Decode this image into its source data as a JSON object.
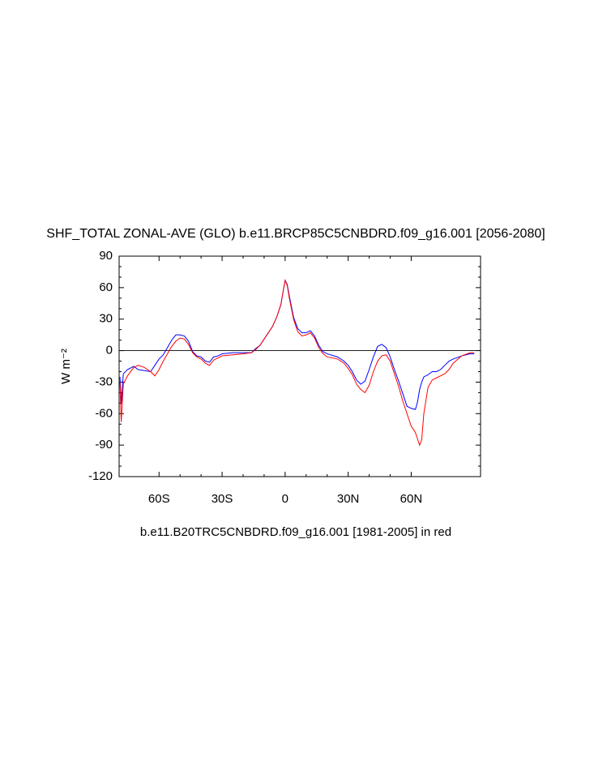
{
  "chart_data": {
    "type": "line",
    "title": "SHF_TOTAL ZONAL-AVE (GLO) b.e11.BRCP85C5CNBDRD.f09_g16.001 [2056-2080]",
    "x_label": "b.e11.B20TRC5CNBDRD.f09_g16.001 [1981-2005] in red",
    "y_label": "W m⁻²",
    "x": [
      -78.6,
      -78,
      -77,
      -75,
      -72,
      -70,
      -67,
      -64,
      -62,
      -60,
      -58,
      -56,
      -54,
      -52,
      -50,
      -48,
      -46,
      -44,
      -42,
      -40,
      -38,
      -36,
      -34,
      -32,
      -30,
      -25,
      -20,
      -16,
      -14,
      -12,
      -10,
      -8,
      -6,
      -4,
      -2,
      -1,
      0,
      1,
      2,
      4,
      6,
      8,
      10,
      12,
      14,
      16,
      18,
      20,
      25,
      28,
      30,
      32,
      34,
      36,
      38,
      40,
      42,
      44,
      46,
      48,
      50,
      52,
      54,
      56,
      58,
      60,
      62,
      63,
      64,
      65,
      66,
      68,
      70,
      72,
      74,
      76,
      78,
      80,
      84,
      88,
      90
    ],
    "series": [
      {
        "name": "b.e11.BRCP85C5CNBDRD.f09_g16.001 [2056-2080]",
        "color": "#0000ff",
        "values": [
          -25,
          -51,
          -22,
          -18,
          -15,
          -18,
          -19,
          -20,
          -14,
          -8,
          -4,
          3,
          10,
          15,
          15,
          14,
          9,
          -1,
          -5,
          -6,
          -10,
          -11,
          -6,
          -5,
          -3,
          -2,
          -2,
          -2,
          2,
          5,
          11,
          17,
          23,
          32,
          44,
          56,
          67,
          63,
          52,
          32,
          21,
          17,
          17,
          19,
          14,
          5,
          -1,
          -3,
          -6,
          -10,
          -14,
          -20,
          -28,
          -32,
          -29,
          -18,
          -6,
          4,
          6,
          3,
          -6,
          -18,
          -29,
          -41,
          -53,
          -55,
          -56,
          -49,
          -37,
          -30,
          -25,
          -23,
          -20,
          -20,
          -18,
          -14,
          -10,
          -8,
          -5,
          -3,
          -3
        ]
      },
      {
        "name": "b.e11.B20TRC5CNBDRD.f09_g16.001 [1981-2005]",
        "color": "#ff0000",
        "values": [
          -30,
          -68,
          -32,
          -24,
          -16,
          -14,
          -16,
          -20,
          -24,
          -18,
          -10,
          -3,
          4,
          9,
          12,
          11,
          6,
          -2,
          -6,
          -8,
          -12,
          -14,
          -9,
          -7,
          -5,
          -4,
          -3,
          -2,
          1,
          5,
          11,
          17,
          23,
          32,
          44,
          56,
          67,
          62,
          50,
          30,
          18,
          14,
          15,
          17,
          12,
          3,
          -3,
          -6,
          -8,
          -12,
          -17,
          -23,
          -32,
          -37,
          -40,
          -33,
          -20,
          -10,
          -5,
          -4,
          -10,
          -22,
          -34,
          -48,
          -60,
          -72,
          -78,
          -84,
          -90,
          -85,
          -60,
          -35,
          -28,
          -26,
          -24,
          -22,
          -18,
          -12,
          -5,
          -2,
          -2
        ]
      }
    ],
    "xlim": [
      -79,
      93
    ],
    "ylim": [
      -120,
      90
    ],
    "xticks": [
      {
        "value": -60,
        "label": "60S"
      },
      {
        "value": -30,
        "label": "30S"
      },
      0,
      {
        "value": 30,
        "label": "30N"
      },
      {
        "value": 60,
        "label": "60N"
      }
    ],
    "yticks": [
      90,
      60,
      30,
      0,
      -30,
      -60,
      -90,
      -120
    ]
  }
}
